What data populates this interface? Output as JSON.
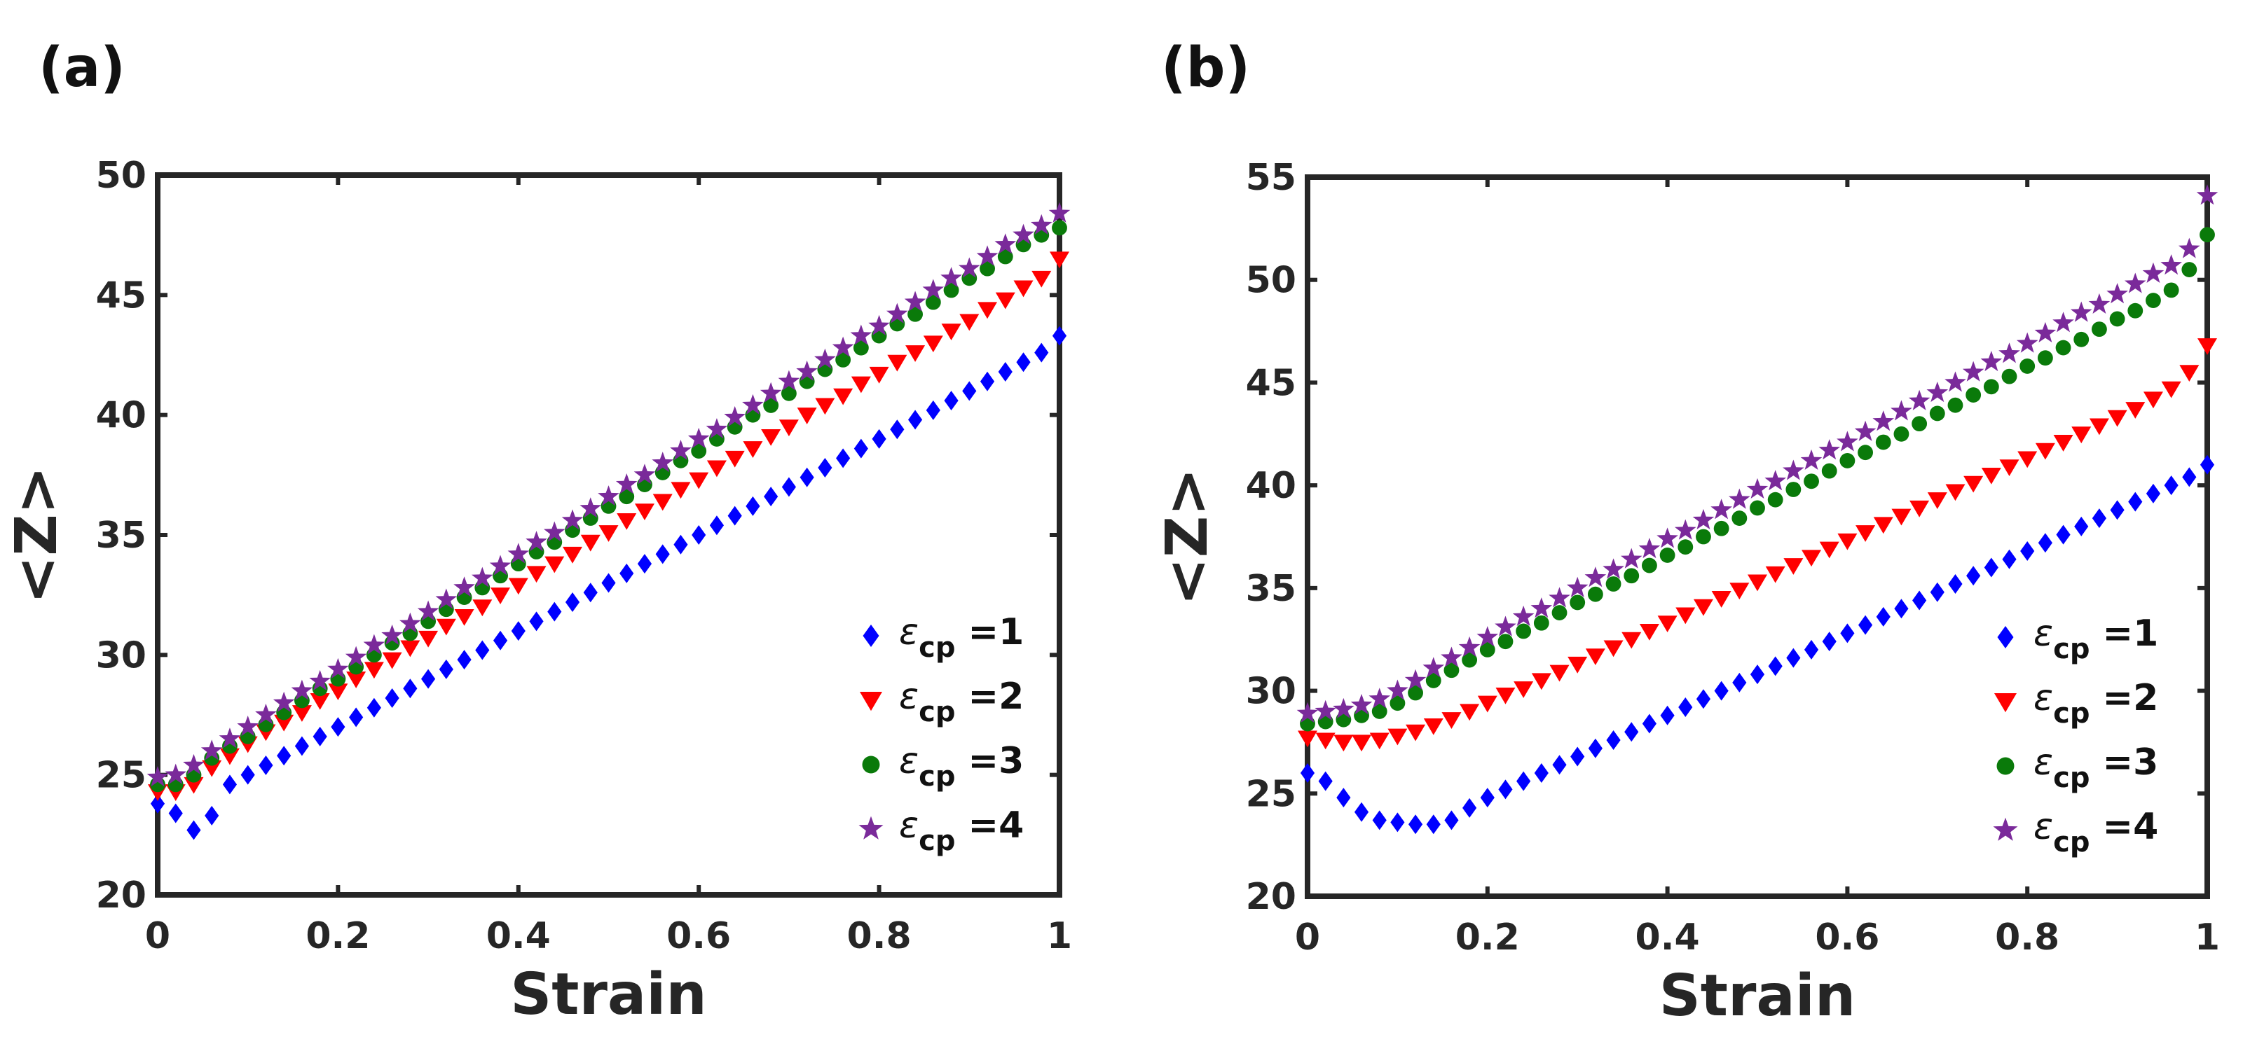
{
  "chart_data": [
    {
      "panel_label": "(a)",
      "type": "scatter",
      "xlabel": "Strain",
      "ylabel": "<Z>",
      "xlim": [
        0,
        1
      ],
      "ylim": [
        20,
        50
      ],
      "xticks": [
        0,
        0.2,
        0.4,
        0.6,
        0.8,
        1
      ],
      "xtick_labels": [
        "0",
        "0.2",
        "0.4",
        "0.6",
        "0.8",
        "1"
      ],
      "yticks": [
        20,
        25,
        30,
        35,
        40,
        45,
        50
      ],
      "ytick_labels": [
        "20",
        "25",
        "30",
        "35",
        "40",
        "45",
        "50"
      ],
      "legend_position": "bottom-right",
      "grid": false,
      "x": [
        0,
        0.02,
        0.04,
        0.06,
        0.08,
        0.1,
        0.12,
        0.14,
        0.16,
        0.18,
        0.2,
        0.22,
        0.24,
        0.26,
        0.28,
        0.3,
        0.32,
        0.34,
        0.36,
        0.38,
        0.4,
        0.42,
        0.44,
        0.46,
        0.48,
        0.5,
        0.52,
        0.54,
        0.56,
        0.58,
        0.6,
        0.62,
        0.64,
        0.66,
        0.68,
        0.7,
        0.72,
        0.74,
        0.76,
        0.78,
        0.8,
        0.82,
        0.84,
        0.86,
        0.88,
        0.9,
        0.92,
        0.94,
        0.96,
        0.98,
        1
      ],
      "series": [
        {
          "name": "ε",
          "subscript": "cp",
          "suffix": " =1",
          "color": "#0000ff",
          "marker": "diamond",
          "values": [
            23.8,
            23.4,
            22.7,
            23.3,
            24.6,
            25.0,
            25.4,
            25.8,
            26.2,
            26.6,
            27.0,
            27.4,
            27.8,
            28.2,
            28.6,
            29.0,
            29.4,
            29.8,
            30.2,
            30.6,
            31.0,
            31.4,
            31.8,
            32.2,
            32.6,
            33.0,
            33.4,
            33.8,
            34.2,
            34.6,
            35.0,
            35.4,
            35.8,
            36.2,
            36.6,
            37.0,
            37.4,
            37.8,
            38.2,
            38.6,
            39.0,
            39.4,
            39.8,
            40.2,
            40.6,
            41.0,
            41.4,
            41.8,
            42.2,
            42.6,
            43.3
          ]
        },
        {
          "name": "ε",
          "subscript": "cp",
          "suffix": " =2",
          "color": "#ff0000",
          "marker": "triangle-down",
          "values": [
            24.3,
            24.3,
            24.6,
            25.3,
            25.8,
            26.3,
            26.8,
            27.2,
            27.6,
            28.1,
            28.5,
            29.0,
            29.4,
            29.8,
            30.3,
            30.7,
            31.2,
            31.6,
            32.0,
            32.5,
            32.9,
            33.4,
            33.8,
            34.2,
            34.7,
            35.1,
            35.6,
            36.0,
            36.4,
            36.9,
            37.3,
            37.8,
            38.2,
            38.6,
            39.1,
            39.5,
            40.0,
            40.4,
            40.8,
            41.3,
            41.7,
            42.2,
            42.6,
            43.0,
            43.5,
            43.9,
            44.4,
            44.8,
            45.3,
            45.7,
            46.5
          ]
        },
        {
          "name": "ε",
          "subscript": "cp",
          "suffix": " =3",
          "color": "#0a7a0a",
          "marker": "circle",
          "values": [
            24.6,
            24.6,
            25.0,
            25.7,
            26.2,
            26.6,
            27.1,
            27.6,
            28.1,
            28.6,
            29.0,
            29.5,
            30.0,
            30.5,
            30.9,
            31.4,
            31.9,
            32.4,
            32.8,
            33.3,
            33.8,
            34.3,
            34.7,
            35.2,
            35.7,
            36.2,
            36.6,
            37.1,
            37.6,
            38.1,
            38.5,
            39.0,
            39.5,
            40.0,
            40.4,
            40.9,
            41.4,
            41.9,
            42.3,
            42.8,
            43.3,
            43.8,
            44.2,
            44.7,
            45.2,
            45.7,
            46.1,
            46.6,
            47.1,
            47.5,
            47.8
          ]
        },
        {
          "name": "ε",
          "subscript": "cp",
          "suffix": " =4",
          "color": "#7a2a9a",
          "marker": "star",
          "values": [
            24.9,
            25.0,
            25.4,
            26.0,
            26.5,
            27.0,
            27.5,
            28.0,
            28.5,
            28.9,
            29.4,
            29.9,
            30.4,
            30.8,
            31.3,
            31.8,
            32.3,
            32.8,
            33.2,
            33.7,
            34.2,
            34.7,
            35.1,
            35.6,
            36.1,
            36.6,
            37.1,
            37.5,
            38.0,
            38.5,
            39.0,
            39.4,
            39.9,
            40.4,
            40.9,
            41.4,
            41.8,
            42.3,
            42.8,
            43.3,
            43.7,
            44.2,
            44.7,
            45.2,
            45.7,
            46.1,
            46.6,
            47.1,
            47.5,
            47.9,
            48.4
          ]
        }
      ]
    },
    {
      "panel_label": "(b)",
      "type": "scatter",
      "xlabel": "Strain",
      "ylabel": "<Z>",
      "xlim": [
        0,
        1
      ],
      "ylim": [
        20,
        55
      ],
      "xticks": [
        0,
        0.2,
        0.4,
        0.6,
        0.8,
        1
      ],
      "xtick_labels": [
        "0",
        "0.2",
        "0.4",
        "0.6",
        "0.8",
        "1"
      ],
      "yticks": [
        20,
        25,
        30,
        35,
        40,
        45,
        50,
        55
      ],
      "ytick_labels": [
        "20",
        "25",
        "30",
        "35",
        "40",
        "45",
        "50",
        "55"
      ],
      "legend_position": "bottom-right",
      "grid": false,
      "x": [
        0,
        0.02,
        0.04,
        0.06,
        0.08,
        0.1,
        0.12,
        0.14,
        0.16,
        0.18,
        0.2,
        0.22,
        0.24,
        0.26,
        0.28,
        0.3,
        0.32,
        0.34,
        0.36,
        0.38,
        0.4,
        0.42,
        0.44,
        0.46,
        0.48,
        0.5,
        0.52,
        0.54,
        0.56,
        0.58,
        0.6,
        0.62,
        0.64,
        0.66,
        0.68,
        0.7,
        0.72,
        0.74,
        0.76,
        0.78,
        0.8,
        0.82,
        0.84,
        0.86,
        0.88,
        0.9,
        0.92,
        0.94,
        0.96,
        0.98,
        1
      ],
      "series": [
        {
          "name": "ε",
          "subscript": "cp",
          "suffix": " =1",
          "color": "#0000ff",
          "marker": "diamond",
          "values": [
            26.0,
            25.6,
            24.8,
            24.1,
            23.7,
            23.6,
            23.5,
            23.5,
            23.7,
            24.3,
            24.8,
            25.2,
            25.6,
            26.0,
            26.4,
            26.8,
            27.2,
            27.6,
            28.0,
            28.4,
            28.8,
            29.2,
            29.6,
            30.0,
            30.4,
            30.8,
            31.2,
            31.6,
            32.0,
            32.4,
            32.8,
            33.2,
            33.6,
            34.0,
            34.4,
            34.8,
            35.2,
            35.6,
            36.0,
            36.4,
            36.8,
            37.2,
            37.6,
            38.0,
            38.4,
            38.8,
            39.2,
            39.6,
            40.0,
            40.4,
            41.0
          ]
        },
        {
          "name": "ε",
          "subscript": "cp",
          "suffix": " =2",
          "color": "#ff0000",
          "marker": "triangle-down",
          "values": [
            27.7,
            27.6,
            27.5,
            27.5,
            27.6,
            27.8,
            28.0,
            28.3,
            28.6,
            29.0,
            29.4,
            29.8,
            30.1,
            30.5,
            30.9,
            31.3,
            31.7,
            32.1,
            32.5,
            32.9,
            33.3,
            33.7,
            34.1,
            34.5,
            34.9,
            35.3,
            35.7,
            36.1,
            36.5,
            36.9,
            37.3,
            37.7,
            38.1,
            38.5,
            38.9,
            39.3,
            39.7,
            40.1,
            40.5,
            40.9,
            41.3,
            41.7,
            42.1,
            42.5,
            42.9,
            43.3,
            43.7,
            44.2,
            44.7,
            45.5,
            46.8
          ]
        },
        {
          "name": "ε",
          "subscript": "cp",
          "suffix": " =3",
          "color": "#0a7a0a",
          "marker": "circle",
          "values": [
            28.4,
            28.5,
            28.6,
            28.8,
            29.0,
            29.4,
            29.9,
            30.5,
            31.0,
            31.5,
            32.0,
            32.4,
            32.9,
            33.3,
            33.8,
            34.3,
            34.7,
            35.2,
            35.6,
            36.1,
            36.6,
            37.0,
            37.5,
            37.9,
            38.4,
            38.9,
            39.3,
            39.8,
            40.2,
            40.7,
            41.2,
            41.6,
            42.1,
            42.5,
            43.0,
            43.5,
            43.9,
            44.4,
            44.8,
            45.3,
            45.8,
            46.2,
            46.7,
            47.1,
            47.6,
            48.1,
            48.5,
            49.0,
            49.5,
            50.5,
            52.2
          ]
        },
        {
          "name": "ε",
          "subscript": "cp",
          "suffix": " =4",
          "color": "#7a2a9a",
          "marker": "star",
          "values": [
            28.9,
            29.0,
            29.1,
            29.3,
            29.6,
            30.0,
            30.5,
            31.1,
            31.6,
            32.1,
            32.6,
            33.1,
            33.6,
            34.0,
            34.5,
            35.0,
            35.5,
            35.9,
            36.4,
            36.9,
            37.4,
            37.8,
            38.3,
            38.8,
            39.3,
            39.8,
            40.2,
            40.7,
            41.2,
            41.7,
            42.1,
            42.6,
            43.1,
            43.6,
            44.1,
            44.5,
            45.0,
            45.5,
            46.0,
            46.4,
            46.9,
            47.4,
            47.9,
            48.4,
            48.8,
            49.3,
            49.8,
            50.3,
            50.7,
            51.5,
            54.1
          ]
        }
      ]
    }
  ]
}
